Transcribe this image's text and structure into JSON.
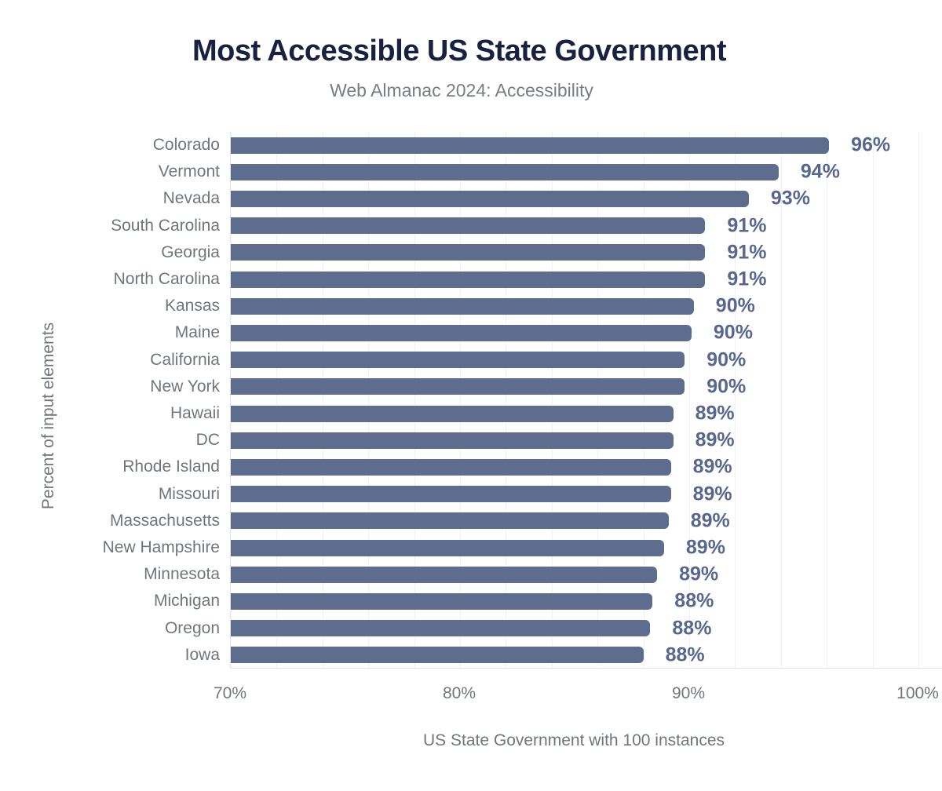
{
  "chart_data": {
    "type": "bar",
    "orientation": "horizontal",
    "title": "Most Accessible US State Government",
    "subtitle": "Web Almanac 2024: Accessibility",
    "xlabel": "US State Government with 100 instances",
    "ylabel": "Percent of input elements",
    "categories": [
      "Colorado",
      "Vermont",
      "Nevada",
      "South Carolina",
      "Georgia",
      "North Carolina",
      "Kansas",
      "Maine",
      "California",
      "New York",
      "Hawaii",
      "DC",
      "Rhode Island",
      "Missouri",
      "Massachusetts",
      "New Hampshire",
      "Minnesota",
      "Michigan",
      "Oregon",
      "Iowa"
    ],
    "values": [
      96,
      94,
      93,
      91,
      91,
      91,
      90,
      90,
      90,
      90,
      89,
      89,
      89,
      89,
      89,
      89,
      89,
      88,
      88,
      88
    ],
    "value_labels": [
      "96%",
      "94%",
      "93%",
      "91%",
      "91%",
      "91%",
      "90%",
      "90%",
      "90%",
      "90%",
      "89%",
      "89%",
      "89%",
      "89%",
      "89%",
      "89%",
      "89%",
      "88%",
      "88%",
      "88%"
    ],
    "values_precise": [
      96.1,
      93.9,
      92.6,
      90.7,
      90.7,
      90.7,
      90.2,
      90.1,
      89.8,
      89.8,
      89.3,
      89.3,
      89.2,
      89.2,
      89.1,
      88.9,
      88.6,
      88.4,
      88.3,
      88.0
    ],
    "xlim": [
      70,
      100
    ],
    "xticks": [
      70,
      80,
      90,
      100
    ],
    "xtick_labels": [
      "70%",
      "80%",
      "90%",
      "100%"
    ],
    "grid_step_pct": 2,
    "legend_position": "none",
    "grid_on": true,
    "colors": {
      "bar": "#5e6d8d",
      "value_label": "#58678f",
      "title": "#18213f",
      "subtitle": "#787d85",
      "axis_text": "#70757e",
      "gridline": "#f1f1f4",
      "axis_line": "#e3e4e8",
      "background": "#ffffff"
    }
  }
}
